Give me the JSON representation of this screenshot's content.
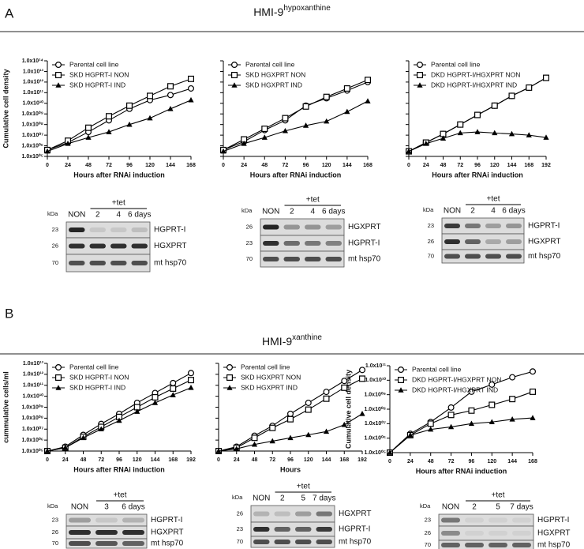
{
  "panels": [
    {
      "label": "A",
      "title": "HMI-9",
      "title_sup": "hypoxanthine"
    },
    {
      "label": "B",
      "title": "HMI-9",
      "title_sup": "xanthine"
    }
  ],
  "chart_data": [
    {
      "type": "line",
      "ylabel": "Cumulative cell density",
      "xlabel": "Hours after RNAi induction",
      "log_y": true,
      "show_ytick_labels": true,
      "legend": "upper left",
      "x": [
        0,
        24,
        48,
        72,
        96,
        120,
        144,
        168
      ],
      "xlim": [
        0,
        168
      ],
      "xticks": [
        0,
        24,
        48,
        72,
        96,
        120,
        144,
        168
      ],
      "ylim": [
        100000.0,
        100000000000000.0
      ],
      "yticks": [
        {
          "value": 100000.0,
          "label": "1.0x10⁰⁵"
        },
        {
          "value": 1000000.0,
          "label": "1.0x10⁰⁶"
        },
        {
          "value": 10000000.0,
          "label": "1.0x10⁰⁷"
        },
        {
          "value": 100000000.0,
          "label": "1.0x10⁰⁸"
        },
        {
          "value": 1000000000.0,
          "label": "1.0x10⁰⁹"
        },
        {
          "value": 10000000000.0,
          "label": "1.0x10¹⁰"
        },
        {
          "value": 100000000000.0,
          "label": "1.0x10¹¹"
        },
        {
          "value": 1000000000000.0,
          "label": "1.0x10¹²"
        },
        {
          "value": 10000000000000.0,
          "label": "1.0x10¹³"
        },
        {
          "value": 100000000000000.0,
          "label": "1.0x10¹⁴"
        }
      ],
      "series": [
        {
          "name": "Parental cell line",
          "marker": "circle",
          "color": "#000000",
          "values": [
            400000.0,
            2000000.0,
            20000000.0,
            250000000.0,
            3000000000.0,
            20000000000.0,
            60000000000.0,
            250000000000.0
          ]
        },
        {
          "name": "SKD HGPRT-I NON",
          "marker": "square",
          "color": "#000000",
          "values": [
            400000.0,
            3000000.0,
            50000000.0,
            600000000.0,
            6000000000.0,
            50000000000.0,
            400000000000.0,
            2000000000000.0
          ]
        },
        {
          "name": "SKD HGPRT-I IND",
          "marker": "triangle",
          "color": "#000000",
          "values": [
            300000.0,
            1600000.0,
            6000000.0,
            20000000.0,
            100000000.0,
            400000000.0,
            3000000000.0,
            20000000000.0
          ]
        }
      ]
    },
    {
      "type": "line",
      "xlabel": "Hours after RNAi induction",
      "log_y": true,
      "show_ytick_labels": false,
      "legend": "upper left",
      "x": [
        0,
        24,
        48,
        72,
        96,
        120,
        144,
        168
      ],
      "xlim": [
        0,
        168
      ],
      "xticks": [
        0,
        24,
        48,
        72,
        96,
        120,
        144,
        168
      ],
      "ylim": [
        100000.0,
        100000000000000.0
      ],
      "yticks": [
        100000.0,
        1000000.0,
        10000000.0,
        100000000.0,
        1000000000.0,
        10000000000.0,
        100000000000.0,
        1000000000000.0,
        10000000000000.0,
        100000000000000.0
      ],
      "series": [
        {
          "name": "Parental cell line",
          "marker": "circle",
          "color": "#000000",
          "values": [
            400000.0,
            2500000.0,
            30000000.0,
            250000000.0,
            6000000000.0,
            30000000000.0,
            160000000000.0,
            1000000000000.0
          ]
        },
        {
          "name": "SKD HGXPRT NON",
          "marker": "square",
          "color": "#000000",
          "values": [
            400000.0,
            4000000.0,
            40000000.0,
            400000000.0,
            5000000000.0,
            40000000000.0,
            250000000000.0,
            1600000000000.0
          ]
        },
        {
          "name": "SKD HGXPRT IND",
          "marker": "triangle",
          "color": "#000000",
          "values": [
            300000.0,
            1600000.0,
            6000000.0,
            25000000.0,
            80000000.0,
            200000000.0,
            1600000000.0,
            16000000000.0
          ]
        }
      ]
    },
    {
      "type": "line",
      "xlabel": "Hours after RNAi induction",
      "log_y": true,
      "show_ytick_labels": false,
      "legend": "upper left",
      "x": [
        0,
        24,
        48,
        72,
        96,
        120,
        144,
        168,
        192
      ],
      "xlim": [
        0,
        192
      ],
      "xticks": [
        0,
        24,
        48,
        72,
        96,
        120,
        144,
        168,
        192
      ],
      "ylim": [
        100000.0,
        100000000000000.0
      ],
      "yticks": [
        100000.0,
        1000000.0,
        10000000.0,
        100000000.0,
        1000000000.0,
        10000000000.0,
        100000000000.0,
        1000000000000.0,
        10000000000000.0,
        100000000000000.0
      ],
      "series": [
        {
          "name": "Parental cell line",
          "marker": "circle",
          "color": "#000000",
          "values": [
            300000.0,
            2000000.0,
            13000000.0,
            100000000.0,
            800000000.0,
            6000000000.0,
            50000000000.0,
            300000000000.0,
            2500000000000.0
          ]
        },
        {
          "name": "DKD HGPRT-I/HGXPRT NON",
          "marker": "square",
          "color": "#000000",
          "values": [
            300000.0,
            2000000.0,
            13000000.0,
            100000000.0,
            800000000.0,
            6000000000.0,
            50000000000.0,
            300000000000.0,
            2500000000000.0
          ]
        },
        {
          "name": "DKD HGPRT-I/HGXPRT IND",
          "marker": "triangle",
          "color": "#000000",
          "values": [
            300000.0,
            1600000.0,
            5000000.0,
            16000000.0,
            20000000.0,
            16000000.0,
            13000000.0,
            10000000.0,
            6000000.0
          ]
        }
      ]
    },
    {
      "type": "line",
      "ylabel": "cummulative cells/ml",
      "xlabel": "Hours after RNAi induction",
      "log_y": true,
      "show_ytick_labels": true,
      "legend": "upper left",
      "x": [
        0,
        24,
        48,
        72,
        96,
        120,
        144,
        168,
        192
      ],
      "xlim": [
        0,
        192
      ],
      "xticks": [
        0,
        24,
        48,
        72,
        96,
        120,
        144,
        168,
        192
      ],
      "ylim": [
        100000.0,
        10000000000000.0
      ],
      "yticks": [
        {
          "value": 100000.0,
          "label": "1.0x10⁰⁵"
        },
        {
          "value": 1000000.0,
          "label": "1.0x10⁰⁶"
        },
        {
          "value": 10000000.0,
          "label": "1.0x10⁰⁷"
        },
        {
          "value": 100000000.0,
          "label": "1.0x10⁰⁸"
        },
        {
          "value": 1000000000.0,
          "label": "1.0x10⁰⁹"
        },
        {
          "value": 10000000000.0,
          "label": "1.0x10¹⁰"
        },
        {
          "value": 100000000000.0,
          "label": "1.0x10¹¹"
        },
        {
          "value": 1000000000000.0,
          "label": "1.0x10¹²"
        },
        {
          "value": 10000000000000.0,
          "label": "1.0x10¹³"
        }
      ],
      "series": [
        {
          "name": "Parental cell line",
          "marker": "circle",
          "color": "#000000",
          "values": [
            100000.0,
            250000.0,
            3000000.0,
            30000000.0,
            250000000.0,
            2500000000.0,
            20000000000.0,
            160000000000.0,
            1300000000000.0
          ]
        },
        {
          "name": "SKD HGPRT-I NON",
          "marker": "square",
          "color": "#000000",
          "values": [
            100000.0,
            200000.0,
            2000000.0,
            16000000.0,
            130000000.0,
            1000000000.0,
            8000000000.0,
            50000000000.0,
            300000000000.0
          ]
        },
        {
          "name": "SKD HGPRT-I IND",
          "marker": "triangle",
          "color": "#000000",
          "values": [
            100000.0,
            200000.0,
            1600000.0,
            10000000.0,
            60000000.0,
            400000000.0,
            2500000000.0,
            13000000000.0,
            60000000000.0
          ]
        }
      ]
    },
    {
      "type": "line",
      "xlabel": "Hours",
      "log_y": true,
      "show_ytick_labels": false,
      "legend": "upper left",
      "x": [
        0,
        24,
        48,
        72,
        96,
        120,
        144,
        168,
        192
      ],
      "xlim": [
        0,
        192
      ],
      "xticks": [
        0,
        24,
        48,
        72,
        96,
        120,
        144,
        168,
        192
      ],
      "ylim": [
        100000.0,
        10000000000000.0
      ],
      "yticks": [
        100000.0,
        1000000.0,
        10000000.0,
        100000000.0,
        1000000000.0,
        10000000000.0,
        100000000000.0,
        1000000000000.0,
        10000000000000.0
      ],
      "series": [
        {
          "name": "Parental cell line",
          "marker": "circle",
          "color": "#000000",
          "values": [
            100000.0,
            250000.0,
            2500000.0,
            20000000.0,
            250000000.0,
            2500000000.0,
            25000000000.0,
            250000000000.0,
            2500000000000.0
          ]
        },
        {
          "name": "SKD HGXPRT NON",
          "marker": "square",
          "color": "#000000",
          "values": [
            100000.0,
            200000.0,
            1600000.0,
            13000000.0,
            80000000.0,
            600000000.0,
            6000000000.0,
            60000000000.0,
            400000000000.0
          ]
        },
        {
          "name": "SKD HGXPRT IND",
          "marker": "triangle",
          "color": "#000000",
          "values": [
            100000.0,
            160000.0,
            400000.0,
            800000.0,
            1600000.0,
            3000000.0,
            6000000.0,
            25000000.0,
            250000000.0
          ]
        }
      ]
    },
    {
      "type": "line",
      "ylabel": "Cumulative cell density",
      "xlabel": "Hours after RNAi induction",
      "log_y": true,
      "show_ytick_labels": true,
      "legend": "upper left",
      "x": [
        0,
        24,
        48,
        72,
        96,
        120,
        144,
        168
      ],
      "xlim": [
        0,
        168
      ],
      "xticks": [
        0,
        24,
        48,
        72,
        96,
        120,
        144,
        168
      ],
      "ylim": [
        100000.0,
        100000000000.0
      ],
      "yticks": [
        {
          "value": 100000.0,
          "label": "1.0x10⁰⁵"
        },
        {
          "value": 1000000.0,
          "label": "1.0x10⁰⁶"
        },
        {
          "value": 10000000.0,
          "label": "1.0x10⁰⁷"
        },
        {
          "value": 100000000.0,
          "label": "1.0x10⁰⁸"
        },
        {
          "value": 1000000000.0,
          "label": "1.0x10⁰⁹"
        },
        {
          "value": 10000000000.0,
          "label": "1.0x10¹⁰"
        },
        {
          "value": 100000000000.0,
          "label": "1.0x10¹¹"
        }
      ],
      "series": [
        {
          "name": "Parental cell line",
          "marker": "circle",
          "color": "#000000",
          "values": [
            100000.0,
            2000000.0,
            13000000.0,
            130000000.0,
            1600000000.0,
            5000000000.0,
            16000000000.0,
            40000000000.0
          ]
        },
        {
          "name": "DKD HGPRT-I/HGXPRT NON",
          "marker": "square",
          "color": "#000000",
          "values": [
            100000.0,
            1600000.0,
            10000000.0,
            40000000.0,
            80000000.0,
            200000000.0,
            500000000.0,
            1600000000.0
          ]
        },
        {
          "name": "DKD HGPRT-I/HGXPRT IND",
          "marker": "triangle",
          "color": "#000000",
          "values": [
            100000.0,
            1600000.0,
            4000000.0,
            6000000.0,
            10000000.0,
            13000000.0,
            20000000.0,
            25000000.0
          ]
        }
      ]
    }
  ],
  "blots": [
    {
      "kda": "kDa",
      "treatment": "+tet",
      "lanes": [
        "NON",
        "2",
        "4",
        "6 days"
      ],
      "rows": [
        {
          "marker": "23",
          "protein": "HGPRT-I"
        },
        {
          "marker": "26",
          "protein": "HGXPRT"
        },
        {
          "marker": "70",
          "protein": "mt hsp70"
        }
      ]
    },
    {
      "kda": "kDa",
      "treatment": "+tet",
      "lanes": [
        "NON",
        "2",
        "4",
        "6 days"
      ],
      "rows": [
        {
          "marker": "26",
          "protein": "HGXPRT"
        },
        {
          "marker": "23",
          "protein": "HGPRT-I"
        },
        {
          "marker": "70",
          "protein": "mt hsp70"
        }
      ]
    },
    {
      "kda": "kDa",
      "treatment": "+tet",
      "lanes": [
        "NON",
        "2",
        "4",
        "6 days"
      ],
      "rows": [
        {
          "marker": "23",
          "protein": "HGPRT-I"
        },
        {
          "marker": "26",
          "protein": "HGXPRT"
        },
        {
          "marker": "70",
          "protein": "mt hsp70"
        }
      ]
    },
    {
      "kda": "kDa",
      "treatment": "+tet",
      "lanes": [
        "NON",
        "3",
        "6 days"
      ],
      "rows": [
        {
          "marker": "23",
          "protein": "HGPRT-I"
        },
        {
          "marker": "26",
          "protein": "HGXPRT"
        },
        {
          "marker": "70",
          "protein": "mt hsp70"
        }
      ]
    },
    {
      "kda": "kDa",
      "treatment": "+tet",
      "lanes": [
        "NON",
        "2",
        "5",
        "7 days"
      ],
      "rows": [
        {
          "marker": "26",
          "protein": "HGXPRT"
        },
        {
          "marker": "23",
          "protein": "HGPRT-I"
        },
        {
          "marker": "70",
          "protein": "mt hsp70"
        }
      ]
    },
    {
      "kda": "kDa",
      "treatment": "+tet",
      "lanes": [
        "NON",
        "2",
        "5",
        "7 days"
      ],
      "rows": [
        {
          "marker": "23",
          "protein": "HGPRT-I"
        },
        {
          "marker": "26",
          "protein": "HGXPRT"
        },
        {
          "marker": "70",
          "protein": "mt hsp70"
        }
      ]
    }
  ]
}
